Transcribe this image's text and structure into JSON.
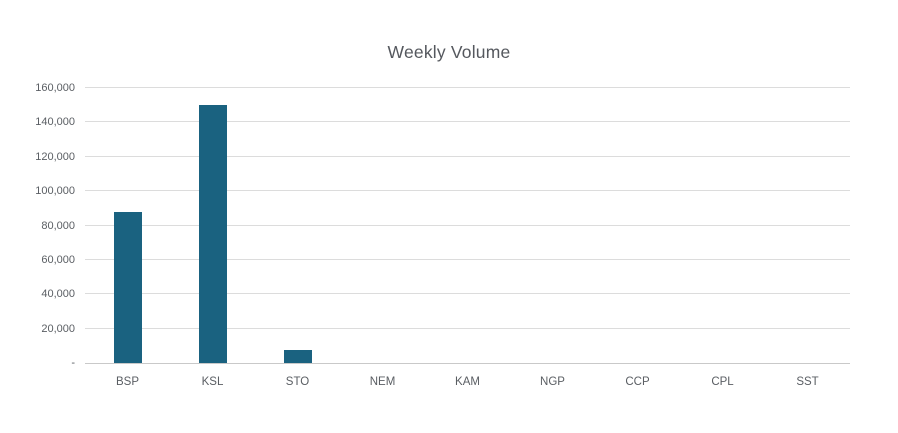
{
  "chart_data": {
    "type": "bar",
    "title": "Weekly Volume",
    "categories": [
      "BSP",
      "KSL",
      "STO",
      "NEM",
      "KAM",
      "NGP",
      "CCP",
      "CPL",
      "SST"
    ],
    "values": [
      88000,
      150000,
      7400,
      0,
      0,
      0,
      0,
      0,
      0
    ],
    "xlabel": "",
    "ylabel": "",
    "ylim": [
      0,
      160000
    ],
    "yticks": [
      {
        "value": 0,
        "label": "-"
      },
      {
        "value": 20000,
        "label": "20,000"
      },
      {
        "value": 40000,
        "label": "40,000"
      },
      {
        "value": 60000,
        "label": "60,000"
      },
      {
        "value": 80000,
        "label": "80,000"
      },
      {
        "value": 100000,
        "label": "100,000"
      },
      {
        "value": 120000,
        "label": "120,000"
      },
      {
        "value": 140000,
        "label": "140,000"
      },
      {
        "value": 160000,
        "label": "160,000"
      }
    ],
    "grid": true,
    "legend_position": "none",
    "colors": {
      "bar": "#1A6280",
      "gridline": "#DCDCDC",
      "zero_line": "#C9C9C9",
      "tick_label": "#5A5E63",
      "title": "#55585E"
    }
  }
}
